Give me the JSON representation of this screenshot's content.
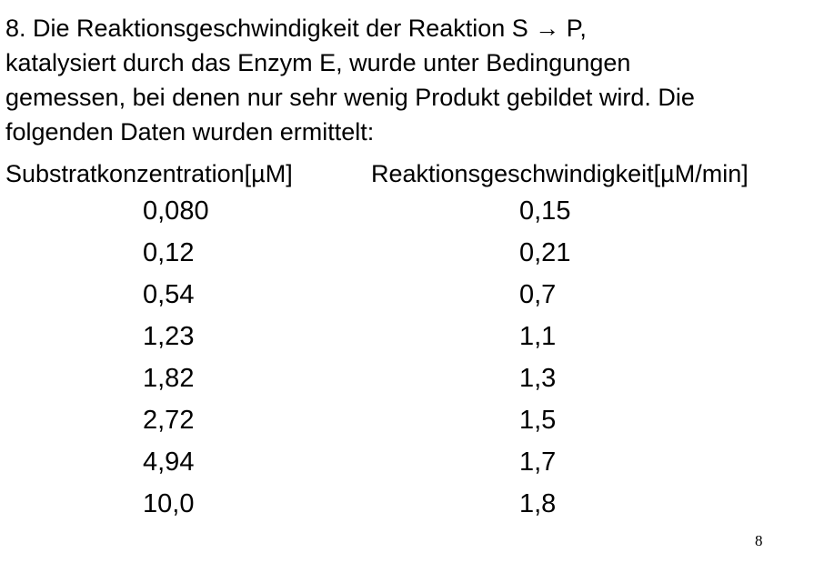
{
  "question": {
    "lines": [
      "8. Die Reaktionsgeschwindigkeit der Reaktion S → P,",
      "katalysiert durch das Enzym E, wurde unter Bedingungen",
      "gemessen, bei denen nur sehr wenig Produkt gebildet wird. Die",
      "folgenden Daten wurden ermittelt:"
    ]
  },
  "table": {
    "headers": {
      "substrate": "Substratkonzentration[µM]",
      "rate": "Reaktionsgeschwindigkeit[µM/min]"
    },
    "rows": [
      {
        "substrate": "0,080",
        "rate": "0,15"
      },
      {
        "substrate": "0,12",
        "rate": "0,21"
      },
      {
        "substrate": "0,54",
        "rate": "0,7"
      },
      {
        "substrate": "1,23",
        "rate": "1,1"
      },
      {
        "substrate": "1,82",
        "rate": "1,3"
      },
      {
        "substrate": "2,72",
        "rate": "1,5"
      },
      {
        "substrate": "4,94",
        "rate": "1,7"
      },
      {
        "substrate": "10,0",
        "rate": "1,8"
      }
    ]
  },
  "page_number": "8"
}
